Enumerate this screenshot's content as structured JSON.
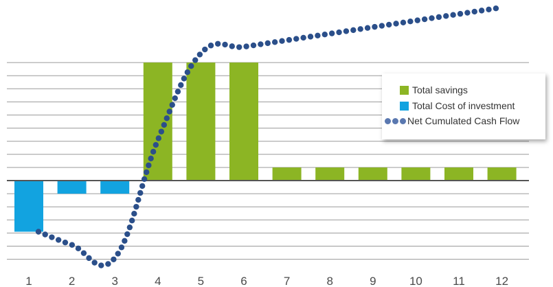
{
  "chart_data": {
    "type": "bar",
    "categories": [
      "1",
      "2",
      "3",
      "4",
      "5",
      "6",
      "7",
      "8",
      "9",
      "10",
      "11",
      "12"
    ],
    "series": [
      {
        "name": "Total savings",
        "kind": "bar",
        "color": "#8cb524",
        "values": [
          0,
          0,
          0,
          9,
          9,
          9,
          1,
          1,
          1,
          1,
          1,
          1
        ]
      },
      {
        "name": "Total Cost of investment",
        "kind": "bar",
        "color": "#12a3e0",
        "values": [
          -3.9,
          -1.0,
          -1.0,
          0,
          0,
          0,
          0,
          0,
          0,
          0,
          0,
          0
        ]
      },
      {
        "name": "Net Cumulated Cash Flow",
        "kind": "line",
        "style": "dotted",
        "color": "#2b4f8a",
        "x": [
          1,
          2,
          3,
          4,
          5,
          6,
          7,
          8,
          9,
          10,
          11,
          12
        ],
        "values": [
          -3.9,
          -4.9,
          -5.9,
          3.1,
          9.7,
          10.2,
          10.7,
          11.2,
          11.7,
          12.2,
          12.7,
          13.2
        ]
      }
    ],
    "ylim": [
      -6.5,
      13.5
    ],
    "grid": true,
    "legend": "right"
  }
}
